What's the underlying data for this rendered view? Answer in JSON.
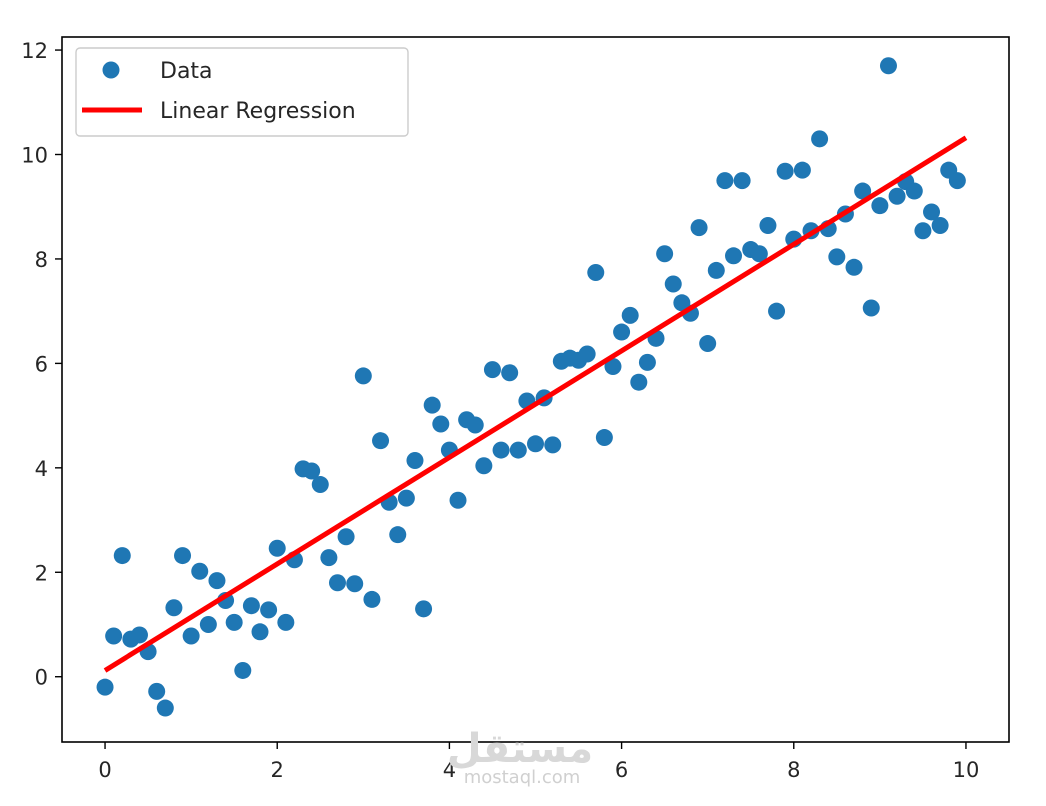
{
  "chart_data": {
    "type": "scatter",
    "title": "",
    "xlabel": "",
    "ylabel": "",
    "xlim": [
      -0.5,
      10.5
    ],
    "ylim": [
      -1.25,
      12.25
    ],
    "xticks": [
      0,
      2,
      4,
      6,
      8,
      10
    ],
    "yticks": [
      0,
      2,
      4,
      6,
      8,
      10,
      12
    ],
    "grid": false,
    "legend_position": "top-left",
    "series": [
      {
        "name": "Data",
        "kind": "scatter",
        "color": "#1f77b4",
        "points": [
          [
            0.0,
            -0.2
          ],
          [
            0.1,
            0.78
          ],
          [
            0.2,
            2.32
          ],
          [
            0.3,
            0.72
          ],
          [
            0.4,
            0.8
          ],
          [
            0.5,
            0.48
          ],
          [
            0.6,
            -0.28
          ],
          [
            0.7,
            -0.6
          ],
          [
            0.8,
            1.32
          ],
          [
            0.9,
            2.32
          ],
          [
            1.0,
            0.78
          ],
          [
            1.1,
            2.02
          ],
          [
            1.2,
            1.0
          ],
          [
            1.3,
            1.84
          ],
          [
            1.4,
            1.46
          ],
          [
            1.5,
            1.04
          ],
          [
            1.6,
            0.12
          ],
          [
            1.7,
            1.36
          ],
          [
            1.8,
            0.86
          ],
          [
            1.9,
            1.28
          ],
          [
            2.0,
            2.46
          ],
          [
            2.1,
            1.04
          ],
          [
            2.2,
            2.24
          ],
          [
            2.3,
            3.98
          ],
          [
            2.4,
            3.94
          ],
          [
            2.5,
            3.68
          ],
          [
            2.6,
            2.28
          ],
          [
            2.7,
            1.8
          ],
          [
            2.8,
            2.68
          ],
          [
            2.9,
            1.78
          ],
          [
            3.0,
            5.76
          ],
          [
            3.1,
            1.48
          ],
          [
            3.2,
            4.52
          ],
          [
            3.3,
            3.34
          ],
          [
            3.4,
            2.72
          ],
          [
            3.5,
            3.42
          ],
          [
            3.6,
            4.14
          ],
          [
            3.7,
            1.3
          ],
          [
            3.8,
            5.2
          ],
          [
            3.9,
            4.84
          ],
          [
            4.0,
            4.34
          ],
          [
            4.1,
            3.38
          ],
          [
            4.2,
            4.92
          ],
          [
            4.3,
            4.82
          ],
          [
            4.4,
            4.04
          ],
          [
            4.5,
            5.88
          ],
          [
            4.6,
            4.34
          ],
          [
            4.7,
            5.82
          ],
          [
            4.8,
            4.34
          ],
          [
            4.9,
            5.28
          ],
          [
            5.0,
            4.46
          ],
          [
            5.1,
            5.34
          ],
          [
            5.2,
            4.44
          ],
          [
            5.3,
            6.04
          ],
          [
            5.4,
            6.1
          ],
          [
            5.5,
            6.06
          ],
          [
            5.6,
            6.18
          ],
          [
            5.7,
            7.74
          ],
          [
            5.8,
            4.58
          ],
          [
            5.9,
            5.94
          ],
          [
            6.0,
            6.6
          ],
          [
            6.1,
            6.92
          ],
          [
            6.2,
            5.64
          ],
          [
            6.3,
            6.02
          ],
          [
            6.4,
            6.48
          ],
          [
            6.5,
            8.1
          ],
          [
            6.6,
            7.52
          ],
          [
            6.7,
            7.16
          ],
          [
            6.8,
            6.96
          ],
          [
            6.9,
            8.6
          ],
          [
            7.0,
            6.38
          ],
          [
            7.1,
            7.78
          ],
          [
            7.2,
            9.5
          ],
          [
            7.3,
            8.06
          ],
          [
            7.4,
            9.5
          ],
          [
            7.5,
            8.18
          ],
          [
            7.6,
            8.1
          ],
          [
            7.7,
            8.64
          ],
          [
            7.8,
            7.0
          ],
          [
            7.9,
            9.68
          ],
          [
            8.0,
            8.38
          ],
          [
            8.1,
            9.7
          ],
          [
            8.2,
            8.54
          ],
          [
            8.3,
            10.3
          ],
          [
            8.4,
            8.58
          ],
          [
            8.5,
            8.04
          ],
          [
            8.6,
            8.86
          ],
          [
            8.7,
            7.84
          ],
          [
            8.8,
            9.3
          ],
          [
            8.9,
            7.06
          ],
          [
            9.0,
            9.02
          ],
          [
            9.1,
            11.7
          ],
          [
            9.2,
            9.2
          ],
          [
            9.3,
            9.48
          ],
          [
            9.4,
            9.3
          ],
          [
            9.5,
            8.54
          ],
          [
            9.6,
            8.9
          ],
          [
            9.7,
            8.64
          ],
          [
            9.8,
            9.7
          ],
          [
            9.9,
            9.5
          ]
        ]
      },
      {
        "name": "Linear Regression",
        "kind": "line",
        "color": "#ff0000",
        "points": [
          [
            0.0,
            0.12
          ],
          [
            10.0,
            10.32
          ]
        ]
      }
    ]
  },
  "watermark": {
    "arabic": "مستقل",
    "latin": "mostaql.com"
  }
}
